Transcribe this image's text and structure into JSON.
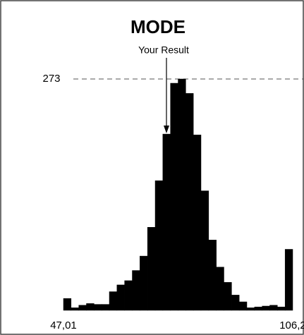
{
  "chart_data": {
    "type": "histogram",
    "title": "MODE",
    "bins": [
      47.01,
      48.98,
      50.96,
      52.93,
      54.9,
      56.88,
      58.85,
      60.82,
      62.79,
      64.77,
      66.74,
      68.71,
      70.69,
      72.66,
      74.63,
      76.61,
      78.58,
      80.55,
      82.52,
      84.5,
      86.47,
      88.44,
      90.42,
      92.39,
      94.36,
      96.34,
      98.31,
      100.28,
      102.25,
      104.23,
      106.2
    ],
    "values": [
      14,
      3,
      6,
      8,
      7,
      7,
      22,
      30,
      35,
      47,
      64,
      98,
      153,
      208,
      268,
      273,
      256,
      207,
      141,
      83,
      51,
      33,
      18,
      10,
      3,
      4,
      5,
      6,
      4,
      72
    ],
    "color": "#000000",
    "xlim": [
      47.01,
      106.2
    ],
    "xticks": [
      {
        "value": 47.01,
        "label": "47,01"
      },
      {
        "value": 106.2,
        "label": "106,2"
      }
    ],
    "ylim": [
      0,
      273
    ],
    "yticks": [
      273
    ],
    "grid": true,
    "annotation": {
      "label": "Your Result",
      "x": 73.6
    }
  }
}
